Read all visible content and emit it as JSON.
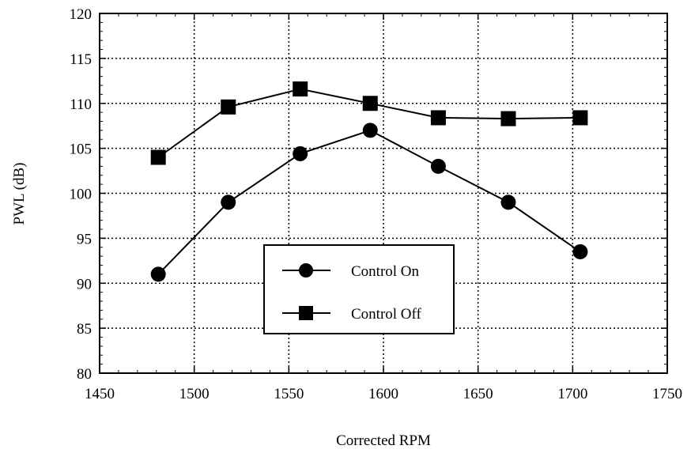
{
  "chart_data": {
    "type": "line",
    "xlabel": "Corrected RPM",
    "ylabel": "PWL (dB)",
    "xlim": [
      1450,
      1750
    ],
    "ylim": [
      80,
      120
    ],
    "xticks": [
      1450,
      1500,
      1550,
      1600,
      1650,
      1700,
      1750
    ],
    "yticks": [
      80,
      85,
      90,
      95,
      100,
      105,
      110,
      115,
      120
    ],
    "grid": true,
    "legend_position": "lower-center",
    "series": [
      {
        "name": "Control On",
        "marker": "circle",
        "color": "#000000",
        "x": [
          1481,
          1518,
          1556,
          1593,
          1629,
          1666,
          1704
        ],
        "y": [
          91.0,
          99.0,
          104.4,
          107.0,
          103.0,
          99.0,
          93.5
        ]
      },
      {
        "name": "Control Off",
        "marker": "square",
        "color": "#000000",
        "x": [
          1481,
          1518,
          1556,
          1593,
          1629,
          1666,
          1704
        ],
        "y": [
          104.0,
          109.6,
          111.6,
          110.0,
          108.4,
          108.3,
          108.4
        ]
      }
    ]
  }
}
